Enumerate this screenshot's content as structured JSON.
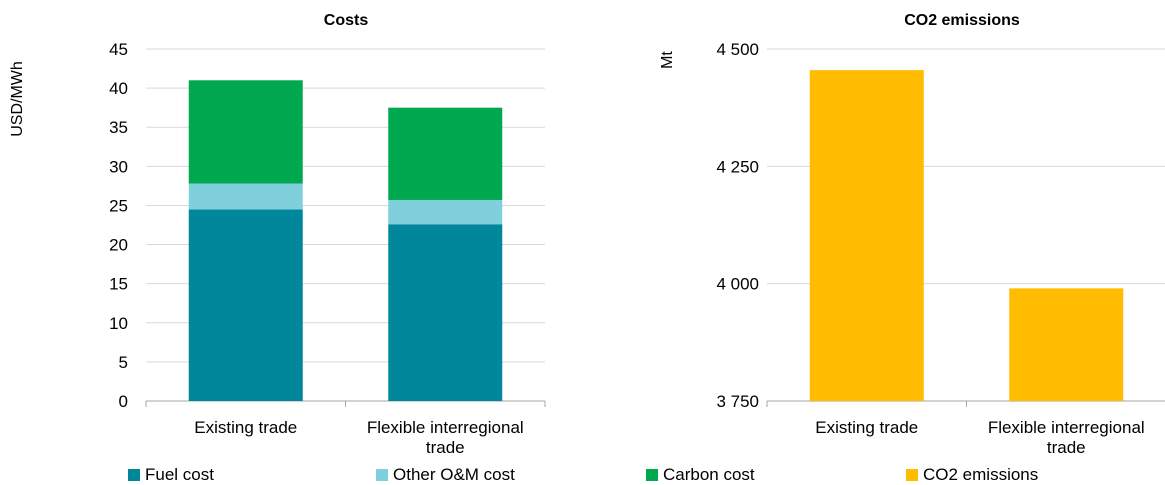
{
  "chart_data": [
    {
      "type": "bar",
      "stacked": true,
      "title": "Costs",
      "ylabel": "USD/MWh",
      "xlabel": "",
      "categories": [
        "Existing trade",
        "Flexible interregional trade"
      ],
      "category_label_lines": [
        [
          "Existing trade"
        ],
        [
          "Flexible interregional",
          "trade"
        ]
      ],
      "ylim": [
        0,
        45
      ],
      "yticks": [
        0,
        5,
        10,
        15,
        20,
        25,
        30,
        35,
        40,
        45
      ],
      "ytick_labels": [
        "0",
        "5",
        "10",
        "15",
        "20",
        "25",
        "30",
        "35",
        "40",
        "45"
      ],
      "grid": true,
      "series": [
        {
          "name": "Fuel cost",
          "color": "#00879B",
          "values": [
            24.5,
            22.6
          ]
        },
        {
          "name": "Other O&M cost",
          "color": "#80CFDD",
          "values": [
            3.3,
            3.1
          ]
        },
        {
          "name": "Carbon cost",
          "color": "#00A84F",
          "values": [
            13.2,
            11.8
          ]
        }
      ],
      "legend_position": "bottom"
    },
    {
      "type": "bar",
      "title": "CO2 emissions",
      "ylabel": "Mt",
      "xlabel": "",
      "categories": [
        "Existing trade",
        "Flexible interregional trade"
      ],
      "category_label_lines": [
        [
          "Existing trade"
        ],
        [
          "Flexible interregional",
          "trade"
        ]
      ],
      "ylim": [
        3750,
        4500
      ],
      "yticks": [
        3750,
        4000,
        4250,
        4500
      ],
      "ytick_labels": [
        "3 750",
        "4 000",
        "4 250",
        "4 500"
      ],
      "grid": true,
      "series": [
        {
          "name": "CO2 emissions",
          "color": "#FFBC00",
          "values": [
            4455,
            3990
          ]
        }
      ],
      "legend_position": "bottom"
    }
  ],
  "legend": [
    {
      "label": "Fuel cost",
      "color": "#00879B"
    },
    {
      "label": "Other O&M cost",
      "color": "#80CFDD"
    },
    {
      "label": "Carbon cost",
      "color": "#00A84F"
    },
    {
      "label": "CO2 emissions",
      "color": "#FFBC00"
    }
  ]
}
